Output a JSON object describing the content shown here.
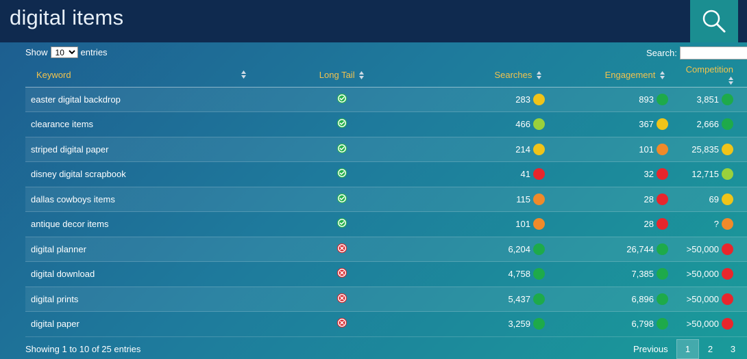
{
  "header": {
    "title": "digital items"
  },
  "controls": {
    "show_label": "Show",
    "entries_label": "entries",
    "page_size": "10",
    "search_label": "Search:",
    "search_value": ""
  },
  "table": {
    "columns": [
      "Keyword",
      "Long Tail",
      "Searches",
      "Engagement",
      "Competition"
    ],
    "rows": [
      {
        "keyword": "easter digital backdrop",
        "long_tail": "check-icon",
        "searches": "283",
        "searches_level": "#f0c419",
        "engagement": "893",
        "engagement_level": "#1eaa4a",
        "competition": "3,851",
        "competition_level": "#1eaa4a"
      },
      {
        "keyword": "clearance items",
        "long_tail": "check-icon",
        "searches": "466",
        "searches_level": "#9ad13b",
        "engagement": "367",
        "engagement_level": "#f0c419",
        "competition": "2,666",
        "competition_level": "#1eaa4a"
      },
      {
        "keyword": "striped digital paper",
        "long_tail": "check-icon",
        "searches": "214",
        "searches_level": "#f0c419",
        "engagement": "101",
        "engagement_level": "#f08a2a",
        "competition": "25,835",
        "competition_level": "#f0c419"
      },
      {
        "keyword": "disney digital scrapbook",
        "long_tail": "check-icon",
        "searches": "41",
        "searches_level": "#e8262c",
        "engagement": "32",
        "engagement_level": "#e8262c",
        "competition": "12,715",
        "competition_level": "#9ad13b"
      },
      {
        "keyword": "dallas cowboys items",
        "long_tail": "check-icon",
        "searches": "115",
        "searches_level": "#f08a2a",
        "engagement": "28",
        "engagement_level": "#e8262c",
        "competition": "69",
        "competition_level": "#f0c419"
      },
      {
        "keyword": "antique decor items",
        "long_tail": "check-icon",
        "searches": "101",
        "searches_level": "#f08a2a",
        "engagement": "28",
        "engagement_level": "#e8262c",
        "competition": "?",
        "competition_level": "#f08a2a"
      },
      {
        "keyword": "digital planner",
        "long_tail": "cross-icon",
        "searches": "6,204",
        "searches_level": "#1eaa4a",
        "engagement": "26,744",
        "engagement_level": "#1eaa4a",
        "competition": ">50,000",
        "competition_level": "#e8262c"
      },
      {
        "keyword": "digital download",
        "long_tail": "cross-icon",
        "searches": "4,758",
        "searches_level": "#1eaa4a",
        "engagement": "7,385",
        "engagement_level": "#1eaa4a",
        "competition": ">50,000",
        "competition_level": "#e8262c"
      },
      {
        "keyword": "digital prints",
        "long_tail": "cross-icon",
        "searches": "5,437",
        "searches_level": "#1eaa4a",
        "engagement": "6,896",
        "engagement_level": "#1eaa4a",
        "competition": ">50,000",
        "competition_level": "#e8262c"
      },
      {
        "keyword": "digital paper",
        "long_tail": "cross-icon",
        "searches": "3,259",
        "searches_level": "#1eaa4a",
        "engagement": "6,798",
        "engagement_level": "#1eaa4a",
        "competition": ">50,000",
        "competition_level": "#e8262c"
      }
    ]
  },
  "footer": {
    "info": "Showing 1 to 10 of 25 entries",
    "previous": "Previous",
    "pages": [
      "1",
      "2",
      "3"
    ],
    "active_page": "1"
  }
}
